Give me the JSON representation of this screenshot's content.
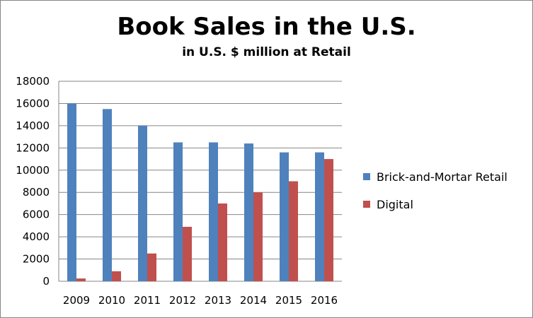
{
  "chart_data": {
    "type": "bar",
    "title": "Book Sales in the U.S.",
    "subtitle": "in U.S. $ million at Retail",
    "categories": [
      "2009",
      "2010",
      "2011",
      "2012",
      "2013",
      "2014",
      "2015",
      "2016"
    ],
    "series": [
      {
        "name": "Brick-and-Mortar Retail",
        "color": "#4f81bd",
        "values": [
          16000,
          15500,
          14000,
          12500,
          12500,
          12400,
          11600,
          11600
        ]
      },
      {
        "name": "Digital",
        "color": "#c0504d",
        "values": [
          250,
          900,
          2500,
          4900,
          7000,
          8000,
          9000,
          11000
        ]
      }
    ],
    "ylim": [
      0,
      18000
    ],
    "yticks": [
      0,
      2000,
      4000,
      6000,
      8000,
      10000,
      12000,
      14000,
      16000,
      18000
    ],
    "grid": true,
    "legend_position": "right"
  }
}
